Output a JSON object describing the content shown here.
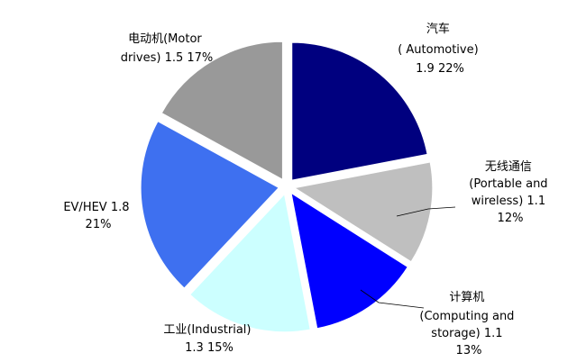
{
  "chart_data": {
    "type": "pie",
    "colors": {
      "automotive": "#00007f",
      "wireless": "#bfbfbf",
      "computing": "#0000ff",
      "industrial": "#ccffff",
      "ev_hev": "#3e70f0",
      "motor": "#999999"
    },
    "slices": [
      {
        "key": "automotive",
        "value": 1.9,
        "percent": 22,
        "label_lines": [
          "汽车",
          "( Automotive)",
          "1.9  22%"
        ]
      },
      {
        "key": "wireless",
        "value": 1.1,
        "percent": 12,
        "label_lines": [
          "无线通信",
          "(Portable and",
          "wireless) 1.1",
          "12%"
        ]
      },
      {
        "key": "computing",
        "value": 1.1,
        "percent": 13,
        "label_lines": [
          "计算机",
          "(Computing and",
          "storage) 1.1",
          "13%"
        ]
      },
      {
        "key": "industrial",
        "value": 1.3,
        "percent": 15,
        "label_lines": [
          "工业(Industrial)",
          "1.3  15%"
        ]
      },
      {
        "key": "ev_hev",
        "value": 1.8,
        "percent": 21,
        "label_lines": [
          "EV/HEV 1.8",
          "21%"
        ]
      },
      {
        "key": "motor",
        "value": 1.5,
        "percent": 17,
        "label_lines": [
          "电动机(Motor",
          "drives) 1.5  17%"
        ]
      }
    ]
  }
}
